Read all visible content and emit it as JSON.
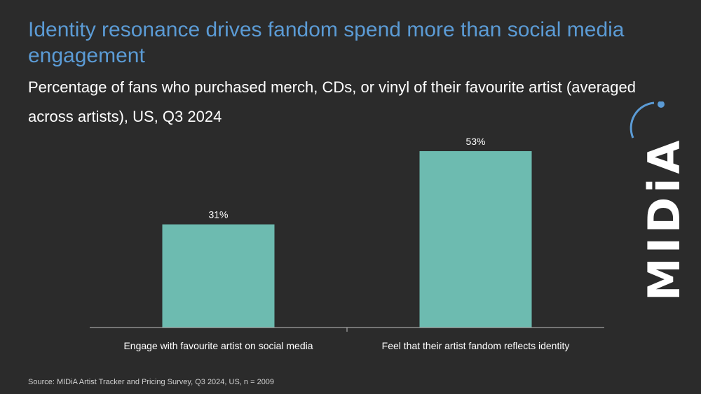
{
  "title": "Identity resonance drives fandom spend more than social media engagement",
  "subtitle": "Percentage of fans who purchased merch, CDs, or vinyl of their favourite artist (averaged across artists), US, Q3 2024",
  "source": "Source: MIDiA Artist Tracker and Pricing Survey, Q3 2024, US, n = 2009",
  "logo_text": "MIDiA",
  "colors": {
    "bar": "#6dbbb0",
    "title": "#5b9bd5",
    "background": "#2b2b2b"
  },
  "chart_data": {
    "type": "bar",
    "categories": [
      "Engage with favourite artist on social media",
      "Feel that their artist fandom reflects identity"
    ],
    "values": [
      31,
      53
    ],
    "value_labels": [
      "31%",
      "53%"
    ],
    "ylim": [
      0,
      60
    ],
    "grid": false,
    "legend": "none"
  }
}
